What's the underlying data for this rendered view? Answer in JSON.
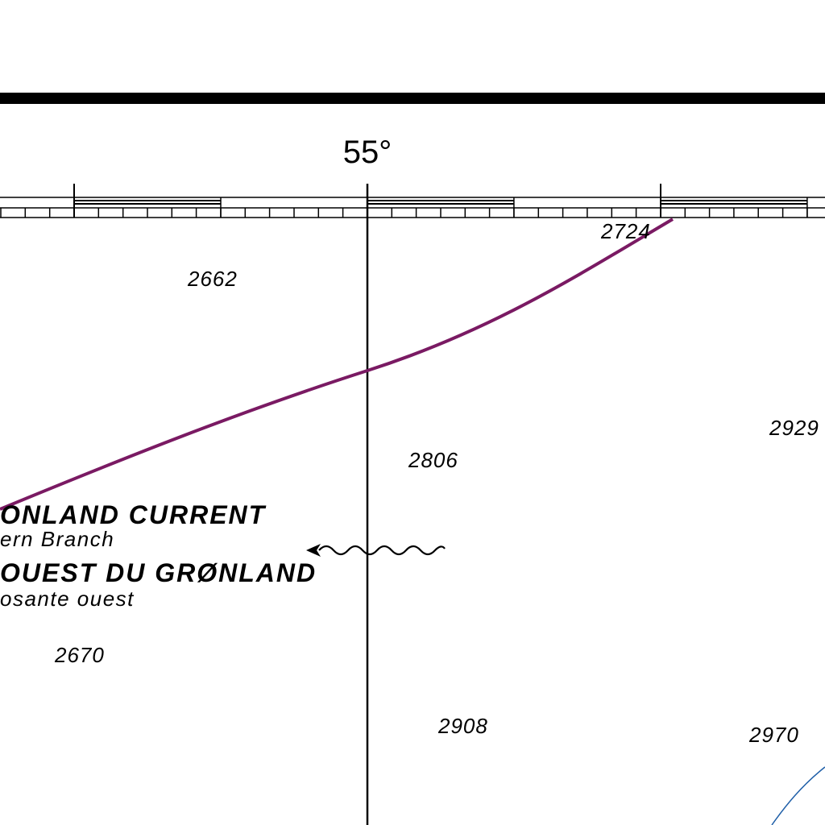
{
  "map": {
    "longitude_label": "55°",
    "soundings": [
      "2724",
      "2662",
      "2929",
      "2806",
      "2670",
      "2908",
      "2970"
    ],
    "current": {
      "name_en": "ONLAND CURRENT",
      "branch_en": "ern Branch",
      "name_fr": "OUEST DU GRØNLAND",
      "branch_fr": "osante ouest"
    },
    "colors": {
      "border": "#000000",
      "boundary_line": "#7a1a63",
      "depth_contour": "#1f5fa8"
    }
  }
}
